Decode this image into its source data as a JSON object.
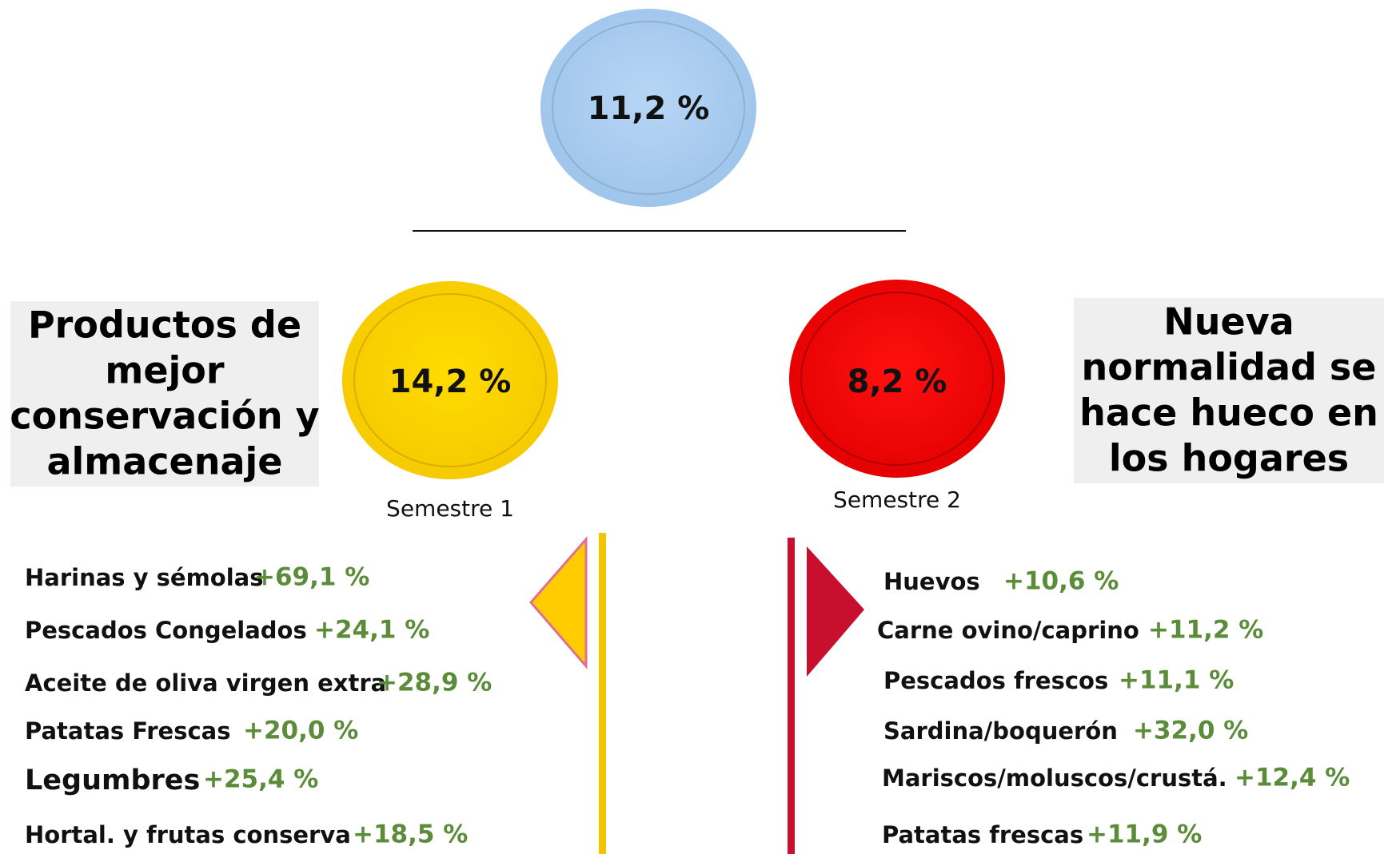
{
  "total": "11,2 %",
  "left": {
    "title_lines": [
      "Productos de",
      "mejor",
      "conservación y",
      "almacenaje"
    ],
    "value": "14,2 %",
    "label": "Semestre 1",
    "items": [
      {
        "name": "Harinas y sémolas",
        "value": "+69,1 %"
      },
      {
        "name": "Pescados Congelados",
        "value": "+24,1 %"
      },
      {
        "name": "Aceite de oliva virgen extra",
        "value": "+28,9 %"
      },
      {
        "name": "Patatas Frescas",
        "value": "+20,0 %"
      },
      {
        "name": "Legumbres",
        "value": "+25,4 %"
      },
      {
        "name": "Hortal. y frutas conserva",
        "value": "+18,5 %"
      }
    ]
  },
  "right": {
    "title_lines": [
      "Nueva",
      "normalidad se",
      "hace hueco en",
      "los hogares"
    ],
    "value": "8,2 %",
    "label": "Semestre 2",
    "items": [
      {
        "name": "Huevos",
        "value": "+10,6 %"
      },
      {
        "name": "Carne ovino/caprino",
        "value": "+11,2 %"
      },
      {
        "name": "Pescados frescos",
        "value": "+11,1 %"
      },
      {
        "name": "Sardina/boquerón",
        "value": "+32,0 %"
      },
      {
        "name": "Mariscos/moluscos/crustá.",
        "value": "+12,4 %"
      },
      {
        "name": "Patatas frescas",
        "value": "+11,9 %"
      }
    ]
  }
}
